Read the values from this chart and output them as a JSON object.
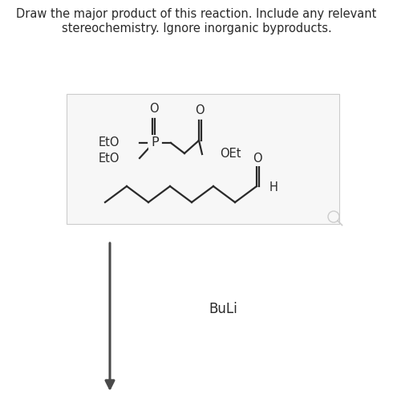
{
  "title_line1": "Draw the major product of this reaction. Include any relevant",
  "title_line2": "stereochemistry. Ignore inorganic byproducts.",
  "title_fontsize": 10.5,
  "reagent_label": "BuLi",
  "reagent_fontsize": 12,
  "bg_color": "#ffffff",
  "box_color": "#f7f7f7",
  "box_edge_color": "#cccccc",
  "line_color": "#2a2a2a",
  "text_color": "#2a2a2a",
  "arrow_color": "#4a4a4a"
}
